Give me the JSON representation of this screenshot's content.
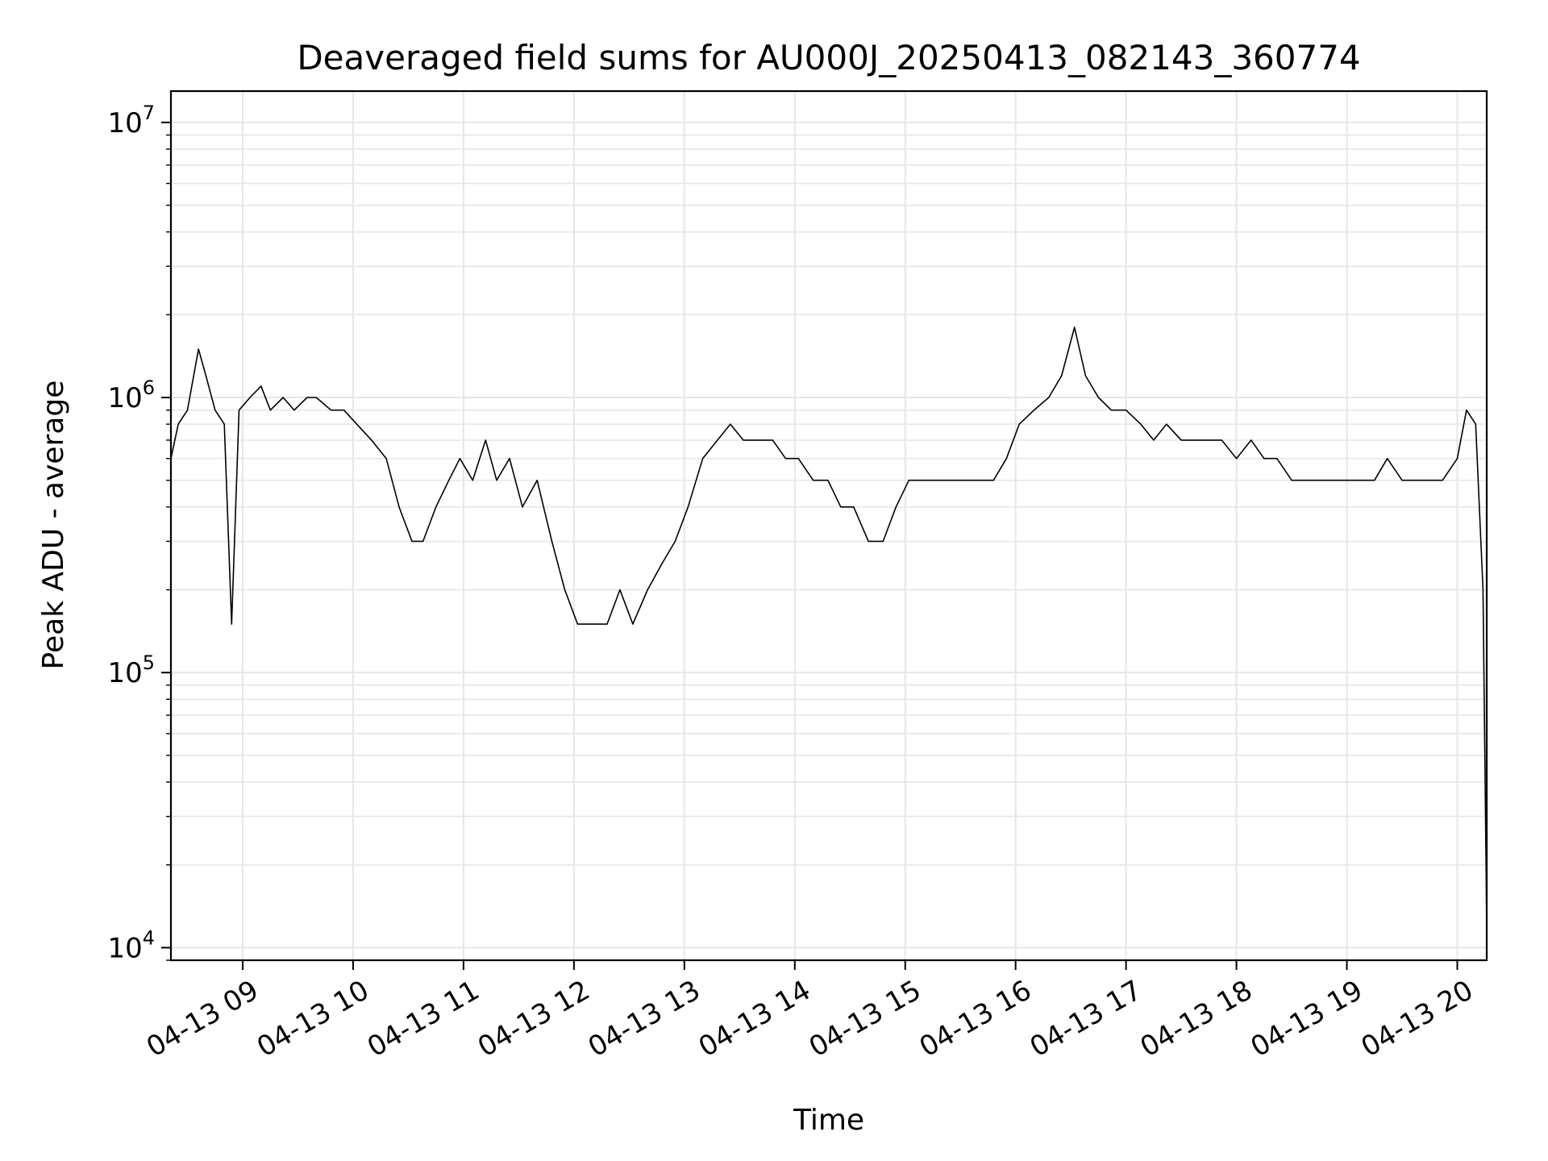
{
  "chart_data": {
    "type": "line",
    "title": "Deaveraged field sums for AU000J_20250413_082143_360774",
    "xlabel": "Time",
    "ylabel": "Peak ADU - average",
    "yscale": "log",
    "ylim": [
      9000,
      13000000
    ],
    "xlim": [
      "04-13 08:21",
      "04-13 20:16"
    ],
    "x_ticks": [
      {
        "value": "2025-04-13T09:00",
        "label": "04-13 09"
      },
      {
        "value": "2025-04-13T10:00",
        "label": "04-13 10"
      },
      {
        "value": "2025-04-13T11:00",
        "label": "04-13 11"
      },
      {
        "value": "2025-04-13T12:00",
        "label": "04-13 12"
      },
      {
        "value": "2025-04-13T13:00",
        "label": "04-13 13"
      },
      {
        "value": "2025-04-13T14:00",
        "label": "04-13 14"
      },
      {
        "value": "2025-04-13T15:00",
        "label": "04-13 15"
      },
      {
        "value": "2025-04-13T16:00",
        "label": "04-13 16"
      },
      {
        "value": "2025-04-13T17:00",
        "label": "04-13 17"
      },
      {
        "value": "2025-04-13T18:00",
        "label": "04-13 18"
      },
      {
        "value": "2025-04-13T19:00",
        "label": "04-13 19"
      },
      {
        "value": "2025-04-13T20:00",
        "label": "04-13 20"
      }
    ],
    "y_ticks": [
      {
        "value": 10000,
        "base": "10",
        "exp": "4"
      },
      {
        "value": 100000,
        "base": "10",
        "exp": "5"
      },
      {
        "value": 1000000,
        "base": "10",
        "exp": "6"
      },
      {
        "value": 10000000,
        "base": "10",
        "exp": "7"
      }
    ],
    "grid": true,
    "line_color": "#000000",
    "grid_color": "#e6e6e6",
    "series": [
      {
        "x": [
          "08:21",
          "08:25",
          "08:30",
          "08:36",
          "08:40",
          "08:45",
          "08:50",
          "08:54",
          "08:58",
          "09:04",
          "09:10",
          "09:15",
          "09:22",
          "09:28",
          "09:35",
          "09:40",
          "09:48",
          "09:55",
          "10:02",
          "10:10",
          "10:18",
          "10:25",
          "10:32",
          "10:38",
          "10:45",
          "10:52",
          "10:58",
          "11:05",
          "11:12",
          "11:18",
          "11:25",
          "11:32",
          "11:40",
          "11:48",
          "11:55",
          "12:02",
          "12:10",
          "12:18",
          "12:25",
          "12:32",
          "12:40",
          "12:48",
          "12:55",
          "13:02",
          "13:10",
          "13:18",
          "13:25",
          "13:32",
          "13:40",
          "13:48",
          "13:55",
          "14:02",
          "14:10",
          "14:18",
          "14:25",
          "14:32",
          "14:40",
          "14:48",
          "14:55",
          "15:02",
          "15:10",
          "15:18",
          "15:25",
          "15:32",
          "15:40",
          "15:48",
          "15:55",
          "16:02",
          "16:10",
          "16:18",
          "16:25",
          "16:32",
          "16:38",
          "16:45",
          "16:52",
          "17:00",
          "17:08",
          "17:15",
          "17:22",
          "17:30",
          "17:38",
          "17:45",
          "17:52",
          "18:00",
          "18:08",
          "18:15",
          "18:22",
          "18:30",
          "18:38",
          "18:45",
          "18:52",
          "19:00",
          "19:08",
          "19:15",
          "19:22",
          "19:30",
          "19:38",
          "19:45",
          "19:52",
          "20:00",
          "20:05",
          "20:10",
          "20:14",
          "20:16"
        ],
        "y": [
          600000,
          800000,
          900000,
          1500000,
          1200000,
          900000,
          800000,
          150000,
          900000,
          1000000,
          1100000,
          900000,
          1000000,
          900000,
          1000000,
          1000000,
          900000,
          900000,
          800000,
          700000,
          600000,
          400000,
          300000,
          300000,
          400000,
          500000,
          600000,
          500000,
          700000,
          500000,
          600000,
          400000,
          500000,
          300000,
          200000,
          150000,
          150000,
          150000,
          200000,
          150000,
          200000,
          250000,
          300000,
          400000,
          600000,
          700000,
          800000,
          700000,
          700000,
          700000,
          600000,
          600000,
          500000,
          500000,
          400000,
          400000,
          300000,
          300000,
          400000,
          500000,
          500000,
          500000,
          500000,
          500000,
          500000,
          500000,
          600000,
          800000,
          900000,
          1000000,
          1200000,
          1800000,
          1200000,
          1000000,
          900000,
          900000,
          800000,
          700000,
          800000,
          700000,
          700000,
          700000,
          700000,
          600000,
          700000,
          600000,
          600000,
          500000,
          500000,
          500000,
          500000,
          500000,
          500000,
          500000,
          600000,
          500000,
          500000,
          500000,
          500000,
          600000,
          900000,
          800000,
          200000,
          12000
        ]
      }
    ]
  }
}
